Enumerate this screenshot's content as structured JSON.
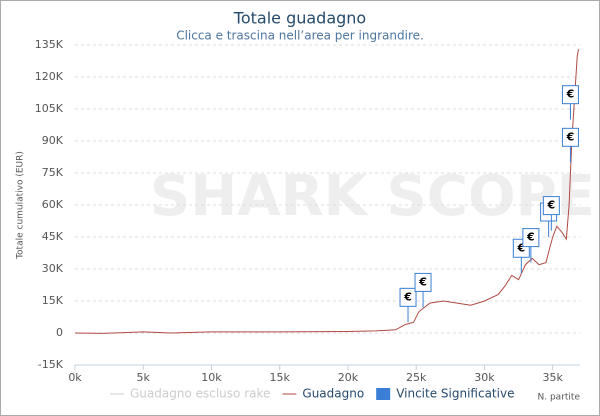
{
  "chart_data": {
    "type": "line",
    "title": "Totale guadagno",
    "subtitle": "Clicca e trascina nell’area per ingrandire.",
    "watermark": "SHARK SCOPE",
    "y_label": "Totale cumulativo (EUR)",
    "x_label": "N. partite",
    "xlim": [
      0,
      37000
    ],
    "ylim": [
      -15000,
      135000
    ],
    "xticks": [
      {
        "value": 0,
        "label": "0k"
      },
      {
        "value": 5000,
        "label": "5k"
      },
      {
        "value": 10000,
        "label": "10k"
      },
      {
        "value": 15000,
        "label": "15k"
      },
      {
        "value": 20000,
        "label": "20k"
      },
      {
        "value": 25000,
        "label": "25k"
      },
      {
        "value": 30000,
        "label": "30k"
      },
      {
        "value": 35000,
        "label": "35k"
      }
    ],
    "yticks": [
      {
        "value": -15000,
        "label": "-15K"
      },
      0,
      {
        "value": 15000,
        "label": "15K"
      },
      {
        "value": 30000,
        "label": "30K"
      },
      {
        "value": 45000,
        "label": "45K"
      },
      {
        "value": 60000,
        "label": "60K"
      },
      {
        "value": 75000,
        "label": "75K"
      },
      {
        "value": 90000,
        "label": "90K"
      },
      {
        "value": 105000,
        "label": "105K"
      },
      {
        "value": 120000,
        "label": "120K"
      },
      {
        "value": 135000,
        "label": "135K"
      }
    ],
    "grid": true,
    "series": [
      {
        "name": "Guadagno escluso rake",
        "color": "#cccccc",
        "visible": false
      },
      {
        "name": "Guadagno",
        "color": "#b04a42",
        "x": [
          0,
          2000,
          5000,
          7000,
          10000,
          15000,
          20000,
          22000,
          23500,
          24200,
          24800,
          25200,
          25600,
          26000,
          27000,
          28000,
          29000,
          30000,
          31000,
          31500,
          32000,
          32500,
          33000,
          33500,
          34000,
          34500,
          35000,
          35300,
          35700,
          36000,
          36200,
          36400,
          36600,
          36800,
          36900
        ],
        "values": [
          0,
          -200,
          500,
          0,
          500,
          500,
          700,
          1000,
          1500,
          4000,
          5000,
          10000,
          12000,
          14000,
          15000,
          14000,
          13000,
          15000,
          18000,
          22000,
          27000,
          25000,
          32000,
          35000,
          32000,
          33000,
          45000,
          50000,
          47000,
          44000,
          60000,
          90000,
          110000,
          130000,
          133000
        ]
      },
      {
        "name": "Vincite Significative",
        "color": "#3a7fd5",
        "marker": "flag",
        "flag_label": "€",
        "x": [
          24400,
          25500,
          32700,
          33400,
          34700,
          34900,
          36300,
          36300
        ],
        "values": [
          5000,
          12000,
          28000,
          33000,
          45000,
          48000,
          80000,
          100000
        ]
      }
    ]
  }
}
